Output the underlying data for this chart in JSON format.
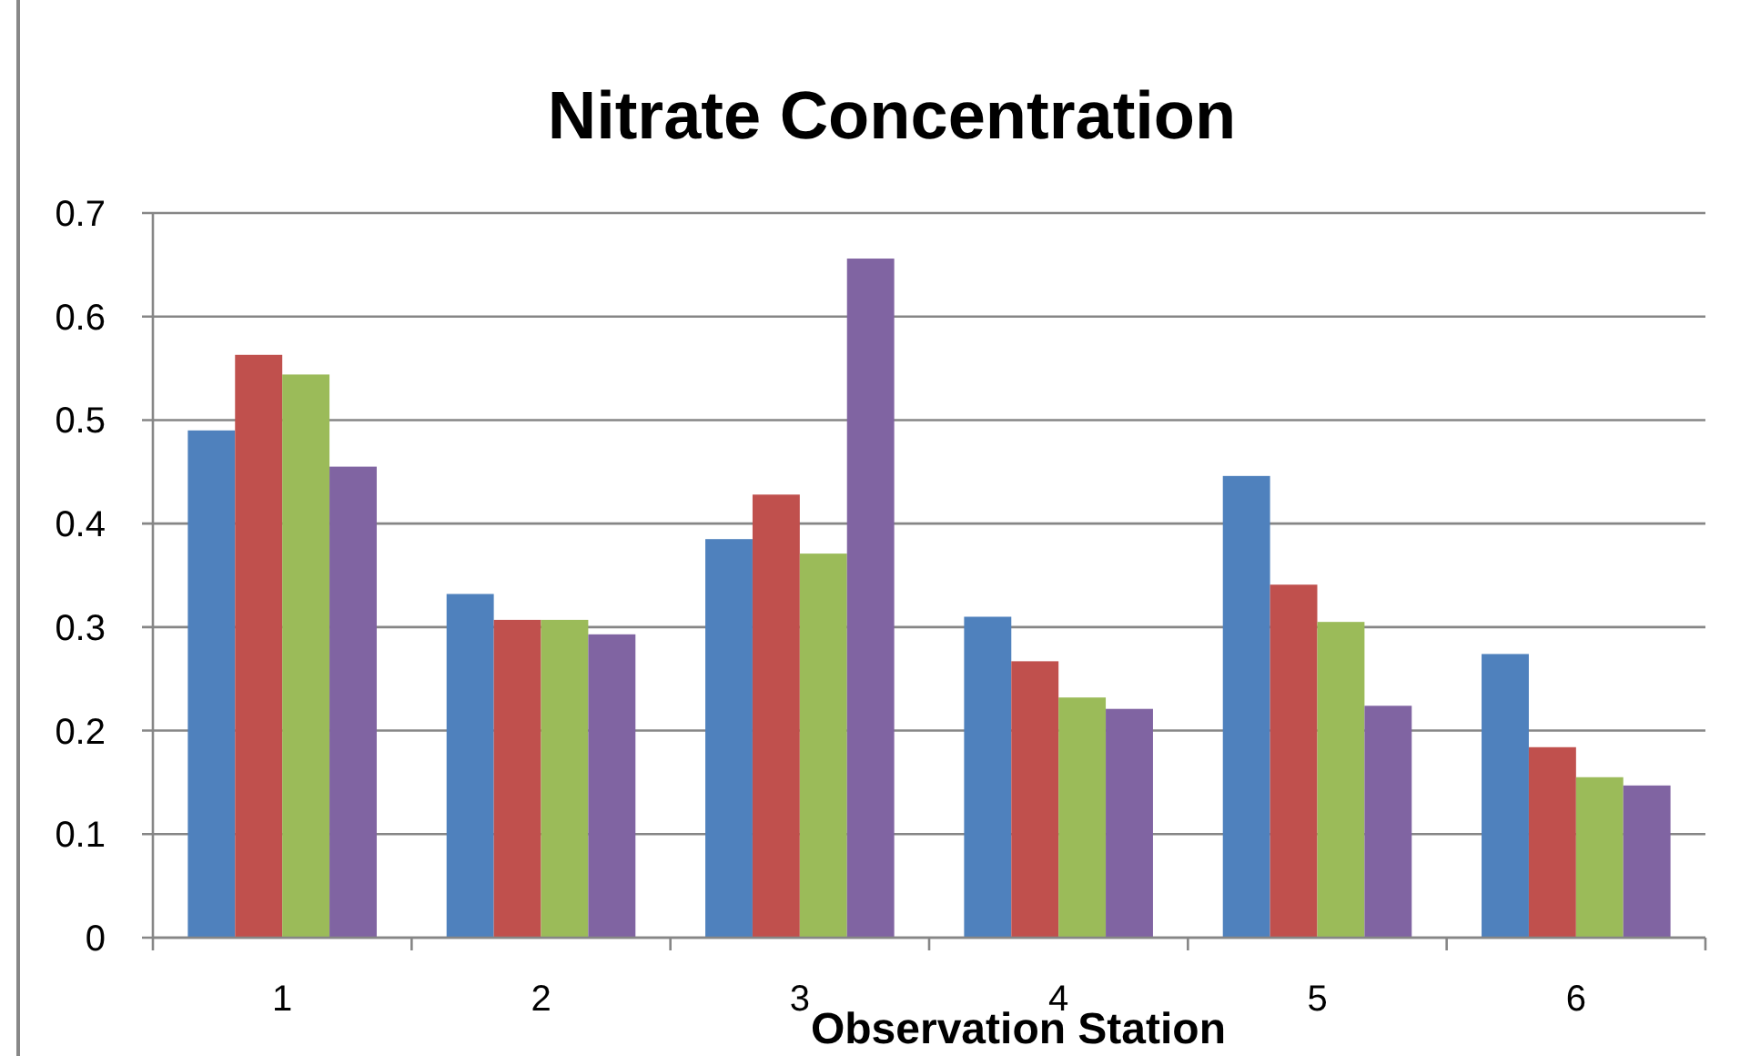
{
  "chart_data": {
    "type": "bar",
    "title": "Nitrate Concentration",
    "xlabel": "Observation Station",
    "categories": [
      "1",
      "2",
      "3",
      "4",
      "5",
      "6"
    ],
    "series": [
      {
        "color": "#4f81bd",
        "values": [
          0.49,
          0.332,
          0.385,
          0.31,
          0.446,
          0.274
        ]
      },
      {
        "color": "#c0504d",
        "values": [
          0.563,
          0.307,
          0.428,
          0.267,
          0.341,
          0.184
        ]
      },
      {
        "color": "#9bbb59",
        "values": [
          0.544,
          0.307,
          0.371,
          0.232,
          0.305,
          0.155
        ]
      },
      {
        "color": "#8064a2",
        "values": [
          0.455,
          0.293,
          0.656,
          0.221,
          0.224,
          0.147
        ]
      }
    ],
    "ylim": [
      0,
      0.7
    ],
    "yticks": [
      0,
      0.1,
      0.2,
      0.3,
      0.4,
      0.5,
      0.6,
      0.7
    ],
    "grid": "y"
  }
}
